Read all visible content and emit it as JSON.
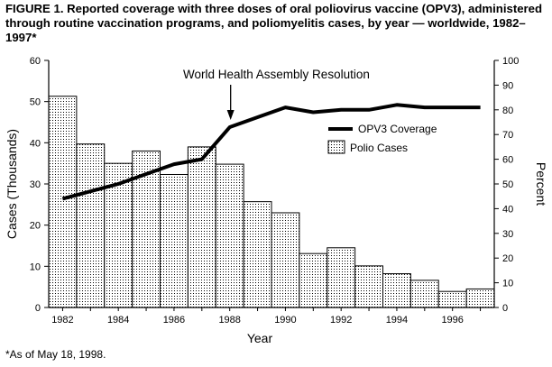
{
  "figure": {
    "title": "FIGURE 1. Reported coverage with three doses of oral poliovirus vaccine (OPV3), administered through routine vaccination programs, and poliomyelitis cases, by year — worldwide, 1982–1997*",
    "footnote": "*As of May 18, 1998."
  },
  "chart_data": {
    "type": "bar",
    "title": "Reported coverage with three doses of oral poliovirus vaccine (OPV3), administered through routine vaccination programs, and poliomyelitis cases, by year — worldwide, 1982–1997*",
    "xlabel": "Year",
    "ylabel": "Cases (Thousands)",
    "y2label": "Percent",
    "x": [
      1982,
      1983,
      1984,
      1985,
      1986,
      1987,
      1988,
      1989,
      1990,
      1991,
      1992,
      1993,
      1994,
      1995,
      1996,
      1997
    ],
    "xticks": [
      "1982",
      "1984",
      "1986",
      "1988",
      "1990",
      "1992",
      "1994",
      "1996"
    ],
    "ylim": [
      0,
      60
    ],
    "yticks": [
      "0",
      "10",
      "20",
      "30",
      "40",
      "50",
      "60"
    ],
    "y2lim": [
      0,
      100
    ],
    "y2ticks": [
      "0",
      "10",
      "20",
      "30",
      "40",
      "50",
      "60",
      "70",
      "80",
      "90",
      "100"
    ],
    "series": [
      {
        "name": "Polio Cases",
        "type": "bar",
        "axis": "left",
        "values": [
          51.3,
          39.7,
          35.0,
          38.0,
          32.3,
          39.0,
          34.8,
          25.7,
          23.0,
          13.1,
          14.5,
          10.1,
          8.2,
          6.6,
          3.9,
          4.5
        ]
      },
      {
        "name": "OPV3 Coverage",
        "type": "line",
        "axis": "right",
        "values": [
          44,
          47,
          50,
          54,
          58,
          60,
          73,
          77,
          81,
          79,
          80,
          80,
          82,
          81,
          81,
          81
        ]
      }
    ],
    "legend": {
      "position": "middle-right",
      "line_label": "OPV3 Coverage",
      "bar_label": "Polio Cases"
    },
    "annotations": [
      {
        "text": "World Health Assembly Resolution",
        "x": 1988,
        "points_to": "OPV3 Coverage"
      }
    ],
    "colors": {
      "bar_fill": "#ffffff",
      "bar_dots": "#000000",
      "line": "#000000",
      "axis": "#000000"
    }
  }
}
